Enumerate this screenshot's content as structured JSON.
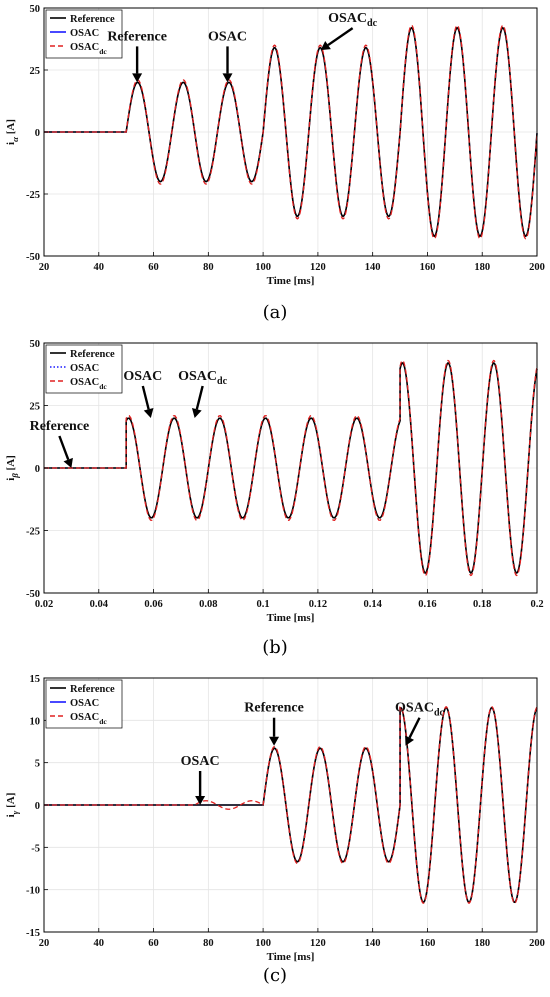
{
  "chart_data": [
    {
      "type": "line",
      "panel_label": "(a)",
      "ylabel": "i",
      "ylabel_sub": "α",
      "ylabel_unit": "[A]",
      "xlabel": "Time [ms]",
      "xlim": [
        20,
        200
      ],
      "ylim": [
        -50,
        50
      ],
      "xticks": [
        "20",
        "40",
        "60",
        "80",
        "100",
        "120",
        "140",
        "160",
        "180",
        "200"
      ],
      "yticks": [
        "-50",
        "-25",
        "0",
        "25",
        "50"
      ],
      "legend": [
        {
          "text": "Reference",
          "sub": "",
          "color": "#000000",
          "dash": "solid"
        },
        {
          "text": "OSAC",
          "sub": "",
          "color": "#1a1aff",
          "dash": "solid"
        },
        {
          "text": "OSAC",
          "sub": "dc",
          "color": "#e02020",
          "dash": "dashed"
        }
      ],
      "annotations": [
        {
          "text": "Reference",
          "sub": "",
          "target": [
            54,
            20
          ]
        },
        {
          "text": "OSAC",
          "sub": "",
          "target": [
            87,
            20
          ]
        },
        {
          "text": "OSAC",
          "sub": "dc",
          "target": [
            121,
            33
          ]
        }
      ],
      "series": [
        {
          "name": "Reference",
          "segments": [
            {
              "t_start": 20,
              "t_end": 50,
              "amplitude": 0,
              "period": 16.67,
              "phase_ms": 50
            },
            {
              "t_start": 50,
              "t_end": 100,
              "amplitude": 20,
              "period": 16.67,
              "phase_ms": 50
            },
            {
              "t_start": 100,
              "t_end": 150,
              "amplitude": 34,
              "period": 16.67,
              "phase_ms": 50
            },
            {
              "t_start": 150,
              "t_end": 200,
              "amplitude": 42,
              "period": 16.67,
              "phase_ms": 50
            }
          ]
        },
        {
          "name": "OSAC",
          "segments": [
            {
              "t_start": 20,
              "t_end": 50,
              "amplitude": 0,
              "period": 16.67,
              "phase_ms": 50
            },
            {
              "t_start": 50,
              "t_end": 100,
              "amplitude": 20,
              "period": 16.67,
              "phase_ms": 50
            },
            {
              "t_start": 100,
              "t_end": 150,
              "amplitude": 34,
              "period": 16.67,
              "phase_ms": 50
            },
            {
              "t_start": 150,
              "t_end": 200,
              "amplitude": 42,
              "period": 16.67,
              "phase_ms": 50
            }
          ]
        },
        {
          "name": "OSAC_dc",
          "segments": [
            {
              "t_start": 20,
              "t_end": 50,
              "amplitude": 0,
              "period": 16.67,
              "phase_ms": 50
            },
            {
              "t_start": 50,
              "t_end": 100,
              "amplitude": 21,
              "period": 16.67,
              "phase_ms": 50
            },
            {
              "t_start": 100,
              "t_end": 150,
              "amplitude": 35,
              "period": 16.67,
              "phase_ms": 50
            },
            {
              "t_start": 150,
              "t_end": 200,
              "amplitude": 43,
              "period": 16.67,
              "phase_ms": 50
            }
          ]
        }
      ]
    },
    {
      "type": "line",
      "panel_label": "(b)",
      "ylabel": "i",
      "ylabel_sub": "β",
      "ylabel_unit": "[A]",
      "xlabel": "Time [ms]",
      "xlim": [
        0.02,
        0.2
      ],
      "ylim": [
        -50,
        50
      ],
      "xticks": [
        "0.02",
        "0.04",
        "0.06",
        "0.08",
        "0.1",
        "0.12",
        "0.14",
        "0.16",
        "0.18",
        "0.2"
      ],
      "yticks": [
        "-50",
        "-25",
        "0",
        "25",
        "50"
      ],
      "legend": [
        {
          "text": "Reference",
          "sub": "",
          "color": "#000000",
          "dash": "solid"
        },
        {
          "text": "OSAC",
          "sub": "",
          "color": "#1a1aff",
          "dash": "dotted"
        },
        {
          "text": "OSAC",
          "sub": "dc",
          "color": "#e02020",
          "dash": "dashed"
        }
      ],
      "annotations": [
        {
          "text": "Reference",
          "sub": "",
          "target": [
            0.03,
            0
          ]
        },
        {
          "text": "OSAC",
          "sub": "",
          "target": [
            0.059,
            20
          ]
        },
        {
          "text": "OSAC",
          "sub": "dc",
          "target": [
            0.075,
            20
          ]
        }
      ],
      "series": [
        {
          "name": "Reference",
          "segments": [
            {
              "t_start": 0.02,
              "t_end": 0.05,
              "amplitude": 0,
              "period": 0.01667,
              "phase_ms": 0.0467
            },
            {
              "t_start": 0.05,
              "t_end": 0.15,
              "amplitude": 20,
              "period": 0.01667,
              "phase_ms": 0.0467
            },
            {
              "t_start": 0.15,
              "t_end": 0.2,
              "amplitude": 42,
              "period": 0.01667,
              "phase_ms": 0.0467
            }
          ]
        },
        {
          "name": "OSAC",
          "segments": [
            {
              "t_start": 0.02,
              "t_end": 0.05,
              "amplitude": 0,
              "period": 0.01667,
              "phase_ms": 0.0467
            },
            {
              "t_start": 0.05,
              "t_end": 0.15,
              "amplitude": 20,
              "period": 0.01667,
              "phase_ms": 0.0467
            },
            {
              "t_start": 0.15,
              "t_end": 0.2,
              "amplitude": 42,
              "period": 0.01667,
              "phase_ms": 0.0467
            }
          ]
        },
        {
          "name": "OSAC_dc",
          "segments": [
            {
              "t_start": 0.02,
              "t_end": 0.05,
              "amplitude": 0,
              "period": 0.01667,
              "phase_ms": 0.0467
            },
            {
              "t_start": 0.05,
              "t_end": 0.15,
              "amplitude": 21,
              "period": 0.01667,
              "phase_ms": 0.0467
            },
            {
              "t_start": 0.15,
              "t_end": 0.2,
              "amplitude": 43,
              "period": 0.01667,
              "phase_ms": 0.0467
            }
          ]
        }
      ]
    },
    {
      "type": "line",
      "panel_label": "(c)",
      "ylabel": "i",
      "ylabel_sub": "γ",
      "ylabel_unit": "[A]",
      "xlabel": "Time [ms]",
      "xlim": [
        20,
        200
      ],
      "ylim": [
        -15,
        15
      ],
      "xticks": [
        "20",
        "40",
        "60",
        "80",
        "100",
        "120",
        "140",
        "160",
        "180",
        "200"
      ],
      "yticks": [
        "-15",
        "-10",
        "-5",
        "0",
        "5",
        "10",
        "15"
      ],
      "legend": [
        {
          "text": "Reference",
          "sub": "",
          "color": "#000000",
          "dash": "solid"
        },
        {
          "text": "OSAC",
          "sub": "",
          "color": "#1a1aff",
          "dash": "solid"
        },
        {
          "text": "OSAC",
          "sub": "dc",
          "color": "#e02020",
          "dash": "dashed"
        }
      ],
      "annotations": [
        {
          "text": "OSAC",
          "sub": "",
          "target": [
            77,
            0
          ]
        },
        {
          "text": "Reference",
          "sub": "",
          "target": [
            104,
            7
          ]
        },
        {
          "text": "OSAC",
          "sub": "dc",
          "target": [
            152,
            7
          ]
        }
      ],
      "series": [
        {
          "name": "Reference",
          "segments": [
            {
              "t_start": 20,
              "t_end": 100,
              "amplitude": 0,
              "period": 16.67,
              "phase_ms": 100
            },
            {
              "t_start": 100,
              "t_end": 150,
              "amplitude": 6.7,
              "period": 16.67,
              "phase_ms": 100
            },
            {
              "t_start": 150,
              "t_end": 200,
              "amplitude": 11.5,
              "period": 16.67,
              "phase_ms": 146
            }
          ]
        },
        {
          "name": "OSAC",
          "segments": [
            {
              "t_start": 20,
              "t_end": 100,
              "amplitude": 0,
              "period": 16.67,
              "phase_ms": 100
            },
            {
              "t_start": 100,
              "t_end": 150,
              "amplitude": 6.7,
              "period": 16.67,
              "phase_ms": 100
            },
            {
              "t_start": 150,
              "t_end": 200,
              "amplitude": 11.5,
              "period": 16.67,
              "phase_ms": 146
            }
          ]
        },
        {
          "name": "OSAC_dc",
          "segments": [
            {
              "t_start": 20,
              "t_end": 75,
              "amplitude": 0,
              "period": 16.67,
              "phase_ms": 100
            },
            {
              "t_start": 75,
              "t_end": 100,
              "amplitude": 0.5,
              "period": 16.67,
              "phase_ms": 75
            },
            {
              "t_start": 100,
              "t_end": 150,
              "amplitude": 6.9,
              "period": 16.67,
              "phase_ms": 100
            },
            {
              "t_start": 150,
              "t_end": 200,
              "amplitude": 11.6,
              "period": 16.67,
              "phase_ms": 146
            }
          ]
        }
      ]
    }
  ]
}
